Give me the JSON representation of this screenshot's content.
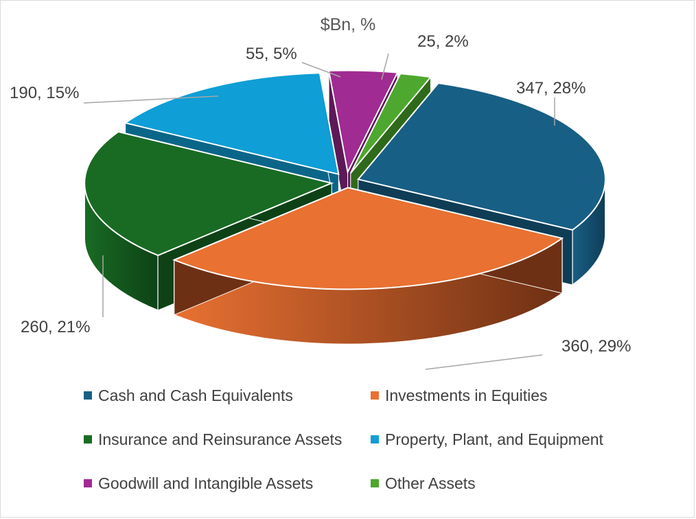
{
  "chart_data": {
    "type": "pie",
    "title": "$Bn, %",
    "slices": [
      {
        "name": "Cash and Cash Equivalents",
        "value": 347,
        "percent": 28,
        "label": "347, 28%",
        "color": "#185F85",
        "dark": "#0F3D56"
      },
      {
        "name": "Investments in Equities",
        "value": 360,
        "percent": 29,
        "label": "360, 29%",
        "color": "#E97132",
        "dark": "#6E3014"
      },
      {
        "name": "Insurance and Reinsurance Assets",
        "value": 260,
        "percent": 21,
        "label": "260, 21%",
        "color": "#196B24",
        "dark": "#0E4216"
      },
      {
        "name": "Property, Plant, and Equipment",
        "value": 190,
        "percent": 15,
        "label": "190, 15%",
        "color": "#0F9ED5",
        "dark": "#0A6688"
      },
      {
        "name": "Goodwill and Intangible Assets",
        "value": 55,
        "percent": 5,
        "label": "55, 5%",
        "color": "#A02B93",
        "dark": "#5E1957"
      },
      {
        "name": "Other Assets",
        "value": 25,
        "percent": 2,
        "label": "25, 2%",
        "color": "#4EA72E",
        "dark": "#2F6A1B"
      }
    ],
    "legend_position": "bottom",
    "style": "3d-exploded"
  }
}
